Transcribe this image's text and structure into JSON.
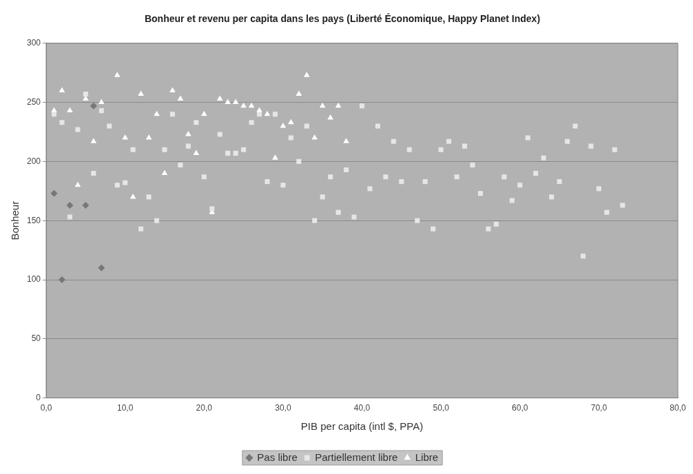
{
  "chart_data": {
    "type": "scatter",
    "title": "Bonheur et revenu per capita dans les pays (Liberté Économique, Happy Planet Index)",
    "xlabel": "PIB per capita (intl $, PPA)",
    "ylabel": "Bonheur",
    "xlim": [
      0,
      80
    ],
    "xticks": [
      {
        "value": 0,
        "label": "0,0"
      },
      {
        "value": 10,
        "label": "10,0"
      },
      {
        "value": 20,
        "label": "20,0"
      },
      {
        "value": 30,
        "label": "30,0"
      },
      {
        "value": 40,
        "label": "40,0"
      },
      {
        "value": 50,
        "label": "50,0"
      },
      {
        "value": 60,
        "label": "60,0"
      },
      {
        "value": 70,
        "label": "70,0"
      },
      {
        "value": 80,
        "label": "80,0"
      }
    ],
    "ylim": [
      0,
      300
    ],
    "yticks": [
      0,
      50,
      100,
      150,
      200,
      250,
      300
    ],
    "grid": "y",
    "legend": "bottom",
    "series": [
      {
        "name": "Pas libre",
        "color": "#777777",
        "marker": "diamond",
        "x": [
          1,
          2,
          3,
          5,
          6,
          7
        ],
        "values": [
          173,
          100,
          163,
          163,
          247,
          110
        ]
      },
      {
        "name": "Partiellement libre",
        "color": "#e6e6e6",
        "marker": "square",
        "x": [
          1,
          2,
          3,
          4,
          5,
          6,
          7,
          8,
          9,
          10,
          11,
          12,
          13,
          14,
          15,
          16,
          17,
          18,
          19,
          20,
          21,
          22,
          23,
          24,
          25,
          26,
          27,
          28,
          29,
          30,
          31,
          32,
          33,
          34,
          35,
          36,
          37,
          38,
          39,
          40,
          41,
          42,
          43,
          44,
          45,
          46,
          47,
          48,
          49,
          50,
          51,
          52,
          53,
          54,
          55,
          56,
          57,
          58,
          59,
          60,
          61,
          62,
          63,
          64,
          65,
          66,
          67,
          68,
          69,
          70,
          71,
          72,
          73
        ],
        "values": [
          240,
          233,
          153,
          227,
          257,
          190,
          243,
          230,
          180,
          182,
          210,
          143,
          170,
          150,
          210,
          240,
          197,
          213,
          233,
          187,
          160,
          223,
          207,
          207,
          210,
          233,
          240,
          183,
          240,
          180,
          220,
          200,
          230,
          150,
          170,
          187,
          157,
          193,
          153,
          247,
          177,
          230,
          187,
          217,
          183,
          210,
          150,
          183,
          143,
          210,
          217,
          187,
          213,
          197,
          173,
          143,
          147,
          187,
          167,
          180,
          220,
          190,
          203,
          170,
          183,
          217,
          230,
          120,
          213,
          177,
          157,
          210,
          163
        ]
      },
      {
        "name": "Libre",
        "color": "#ffffff",
        "marker": "triangle",
        "x": [
          1,
          2,
          3,
          4,
          5,
          6,
          7,
          9,
          10,
          11,
          12,
          13,
          14,
          15,
          16,
          17,
          18,
          19,
          20,
          21,
          22,
          23,
          24,
          25,
          26,
          27,
          28,
          29,
          30,
          31,
          32,
          33,
          34,
          35,
          36,
          37,
          38
        ],
        "values": [
          243,
          260,
          243,
          180,
          253,
          217,
          250,
          273,
          220,
          170,
          257,
          220,
          240,
          190,
          260,
          253,
          223,
          207,
          240,
          157,
          253,
          250,
          250,
          247,
          247,
          243,
          240,
          203,
          230,
          233,
          257,
          273,
          220,
          247,
          237,
          247,
          217
        ]
      }
    ]
  }
}
